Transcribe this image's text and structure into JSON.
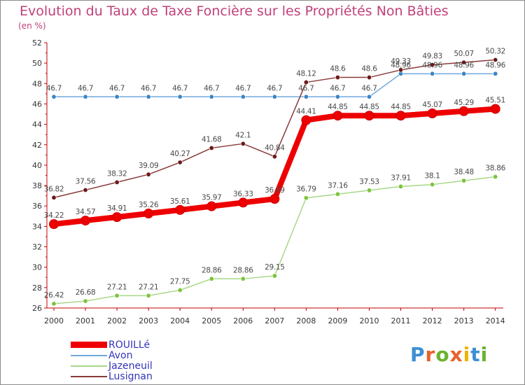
{
  "title": "Evolution du Taux de Taxe Foncière sur les Propriétés Non Bâties",
  "subtitle": "(en %)",
  "logo": {
    "text": "Proxiti",
    "colors": [
      "#3c8fd4",
      "#e8622a",
      "#6ab32e",
      "#e8622a",
      "#f0b400",
      "#3c8fd4",
      "#6ab32e"
    ]
  },
  "chart_data": {
    "type": "line",
    "title": "Evolution du Taux de Taxe Foncière sur les Propriétés Non Bâties",
    "ylabel": "(en %)",
    "ylim": [
      26,
      52
    ],
    "yticks": [
      26,
      28,
      30,
      32,
      34,
      36,
      38,
      40,
      42,
      44,
      46,
      48,
      50,
      52
    ],
    "grid": false,
    "legend_position": "bottom-left",
    "x": [
      "2000",
      "2001",
      "2002",
      "2003",
      "2004",
      "2005",
      "2006",
      "2007",
      "2008",
      "2009",
      "2010",
      "2011",
      "2012",
      "2013",
      "2014"
    ],
    "series": [
      {
        "name": "ROUILLé",
        "color": "#ee0000",
        "marker": "#ee0000",
        "values": [
          34.22,
          34.57,
          34.91,
          35.26,
          35.61,
          35.97,
          36.33,
          36.69,
          44.41,
          44.85,
          44.85,
          44.85,
          45.07,
          45.29,
          45.51
        ],
        "labels": [
          "34.22",
          "34.57",
          "34.91",
          "35.26",
          "35.61",
          "35.97",
          "36.33",
          "36.69",
          "44.41",
          "44.85",
          "44.85",
          "44.85",
          "45.07",
          "45.29",
          "45.51"
        ]
      },
      {
        "name": "Avon",
        "color": "#6fa8dc",
        "marker": "#3d85c6",
        "values": [
          46.7,
          46.7,
          46.7,
          46.7,
          46.7,
          46.7,
          46.7,
          46.7,
          46.7,
          46.7,
          46.7,
          48.96,
          48.96,
          48.96,
          48.96
        ],
        "labels": [
          "46.7",
          "46.7",
          "46.7",
          "46.7",
          "46.7",
          "46.7",
          "46.7",
          "46.7",
          "46.7",
          "46.7",
          "46.7",
          "48.96",
          "48.96",
          "48.96",
          "48.96"
        ]
      },
      {
        "name": "Jazeneuil",
        "color": "#a8d888",
        "marker": "#7cc43c",
        "values": [
          26.42,
          26.68,
          27.21,
          27.21,
          27.75,
          28.86,
          28.86,
          29.15,
          36.79,
          37.16,
          37.53,
          37.91,
          38.1,
          38.48,
          38.86
        ],
        "labels": [
          "26.42",
          "26.68",
          "27.21",
          "27.21",
          "27.75",
          "28.86",
          "28.86",
          "29.15",
          "36.79",
          "37.16",
          "37.53",
          "37.91",
          "38.1",
          "38.48",
          "38.86"
        ]
      },
      {
        "name": "Lusignan",
        "color": "#8b3a3a",
        "marker": "#6b1a1a",
        "values": [
          36.82,
          37.56,
          38.32,
          39.09,
          40.27,
          41.68,
          42.1,
          40.84,
          48.12,
          48.6,
          48.6,
          49.33,
          49.83,
          50.07,
          50.32
        ],
        "labels": [
          "36.82",
          "37.56",
          "38.32",
          "39.09",
          "40.27",
          "41.68",
          "42.1",
          "40.84",
          "48.12",
          "48.6",
          "48.6",
          "49.33",
          "49.83",
          "50.07",
          "50.32"
        ]
      }
    ]
  }
}
